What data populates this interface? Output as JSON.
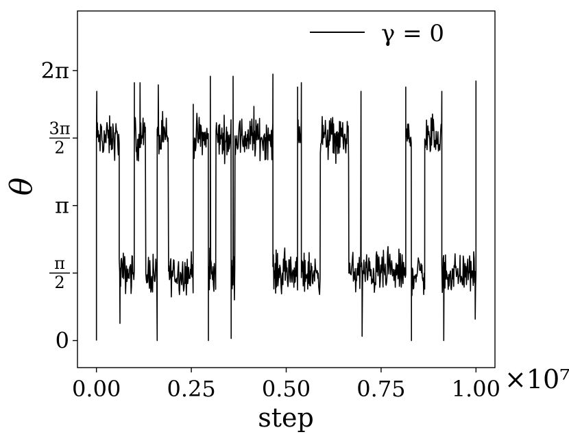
{
  "chart_data": {
    "type": "line",
    "xlabel": "step",
    "ylabel": "θ",
    "x_multiplier": "×10⁷",
    "xlim": [
      -0.05,
      1.05
    ],
    "ylim": [
      -0.63,
      7.67
    ],
    "x_ticks": [
      {
        "value": 0.0,
        "label": "0.00"
      },
      {
        "value": 0.25,
        "label": "0.25"
      },
      {
        "value": 0.5,
        "label": "0.50"
      },
      {
        "value": 0.75,
        "label": "0.75"
      },
      {
        "value": 1.0,
        "label": "1.00"
      }
    ],
    "y_ticks": [
      {
        "value": 0,
        "label": "0"
      },
      {
        "value": 1.5708,
        "label_num": "π",
        "label_den": "2"
      },
      {
        "value": 3.1416,
        "label": "π"
      },
      {
        "value": 4.7124,
        "label_num": "3π",
        "label_den": "2"
      },
      {
        "value": 6.2832,
        "label": "2π"
      }
    ],
    "legend": {
      "entries": [
        "γ = 0"
      ],
      "placement": "top-right"
    },
    "grid": false,
    "series": [
      {
        "name": "γ = 0",
        "color": "#000000",
        "noise_amplitude": 0.42,
        "segments": [
          {
            "x_start": 0.0,
            "x_end": 0.06,
            "level": 4.7124
          },
          {
            "x_start": 0.06,
            "x_end": 0.1,
            "level": 1.5708
          },
          {
            "x_start": 0.1,
            "x_end": 0.13,
            "level": 4.7124
          },
          {
            "x_start": 0.13,
            "x_end": 0.16,
            "level": 1.5708
          },
          {
            "x_start": 0.16,
            "x_end": 0.19,
            "level": 4.7124
          },
          {
            "x_start": 0.19,
            "x_end": 0.255,
            "level": 1.5708
          },
          {
            "x_start": 0.255,
            "x_end": 0.295,
            "level": 4.7124
          },
          {
            "x_start": 0.295,
            "x_end": 0.315,
            "level": 1.5708
          },
          {
            "x_start": 0.315,
            "x_end": 0.355,
            "level": 4.7124
          },
          {
            "x_start": 0.355,
            "x_end": 0.365,
            "level": 1.5708
          },
          {
            "x_start": 0.365,
            "x_end": 0.465,
            "level": 4.7124
          },
          {
            "x_start": 0.465,
            "x_end": 0.53,
            "level": 1.5708
          },
          {
            "x_start": 0.53,
            "x_end": 0.54,
            "level": 4.7124
          },
          {
            "x_start": 0.54,
            "x_end": 0.59,
            "level": 1.5708
          },
          {
            "x_start": 0.59,
            "x_end": 0.665,
            "level": 4.7124
          },
          {
            "x_start": 0.665,
            "x_end": 0.815,
            "level": 1.5708
          },
          {
            "x_start": 0.815,
            "x_end": 0.83,
            "level": 4.7124
          },
          {
            "x_start": 0.83,
            "x_end": 0.865,
            "level": 1.5708
          },
          {
            "x_start": 0.865,
            "x_end": 0.91,
            "level": 4.7124
          },
          {
            "x_start": 0.91,
            "x_end": 1.0,
            "level": 1.5708
          }
        ],
        "spikes": [
          {
            "x": 0.0,
            "y": 0.0
          },
          {
            "x": 0.001,
            "y": 5.8
          },
          {
            "x": 0.062,
            "y": 0.4
          },
          {
            "x": 0.1,
            "y": 6.0
          },
          {
            "x": 0.115,
            "y": 6.0
          },
          {
            "x": 0.16,
            "y": 0.0
          },
          {
            "x": 0.163,
            "y": 5.95
          },
          {
            "x": 0.255,
            "y": 5.5
          },
          {
            "x": 0.295,
            "y": 0.0
          },
          {
            "x": 0.3,
            "y": 6.15
          },
          {
            "x": 0.355,
            "y": 0.05
          },
          {
            "x": 0.36,
            "y": 6.15
          },
          {
            "x": 0.415,
            "y": 5.45
          },
          {
            "x": 0.465,
            "y": 6.2
          },
          {
            "x": 0.53,
            "y": 5.9
          },
          {
            "x": 0.54,
            "y": 6.0
          },
          {
            "x": 0.7,
            "y": 0.1
          },
          {
            "x": 0.697,
            "y": 5.8
          },
          {
            "x": 0.83,
            "y": 0.0
          },
          {
            "x": 0.815,
            "y": 5.9
          },
          {
            "x": 0.915,
            "y": 0.0
          },
          {
            "x": 0.91,
            "y": 5.8
          },
          {
            "x": 1.0,
            "y": 6.05
          },
          {
            "x": 0.998,
            "y": 0.5
          }
        ]
      }
    ]
  }
}
